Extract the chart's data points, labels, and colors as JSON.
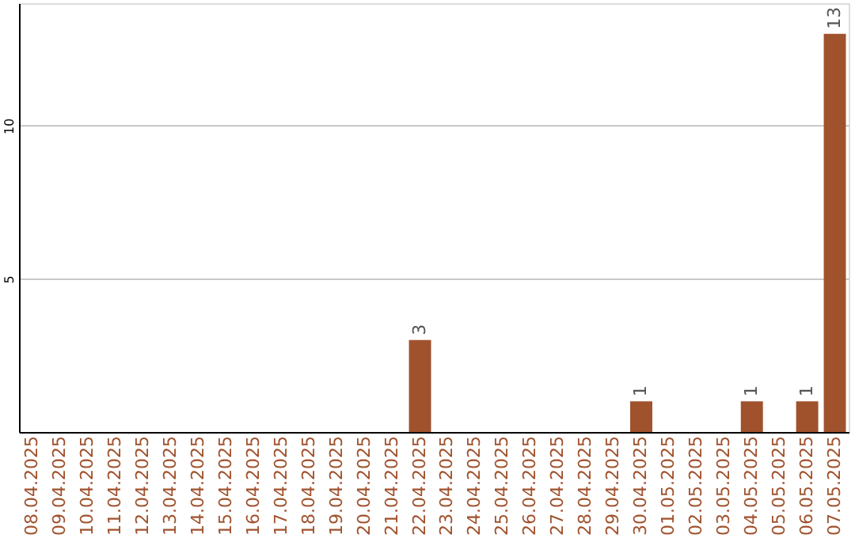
{
  "chart_data": {
    "type": "bar",
    "categories": [
      "08.04.2025",
      "09.04.2025",
      "10.04.2025",
      "11.04.2025",
      "12.04.2025",
      "13.04.2025",
      "14.04.2025",
      "15.04.2025",
      "16.04.2025",
      "17.04.2025",
      "18.04.2025",
      "19.04.2025",
      "20.04.2025",
      "21.04.2025",
      "22.04.2025",
      "23.04.2025",
      "24.04.2025",
      "25.04.2025",
      "26.04.2025",
      "27.04.2025",
      "28.04.2025",
      "29.04.2025",
      "30.04.2025",
      "01.05.2025",
      "02.05.2025",
      "03.05.2025",
      "04.05.2025",
      "05.05.2025",
      "06.05.2025",
      "07.05.2025"
    ],
    "values": [
      0,
      0,
      0,
      0,
      0,
      0,
      0,
      0,
      0,
      0,
      0,
      0,
      0,
      0,
      3,
      0,
      0,
      0,
      0,
      0,
      0,
      0,
      1,
      0,
      0,
      0,
      1,
      0,
      1,
      13
    ],
    "value_labels": [
      null,
      null,
      null,
      null,
      null,
      null,
      null,
      null,
      null,
      null,
      null,
      null,
      null,
      null,
      "3",
      null,
      null,
      null,
      null,
      null,
      null,
      null,
      "1",
      null,
      null,
      null,
      "1",
      null,
      "1",
      "13"
    ],
    "color": "#a0522d",
    "ylim": [
      0,
      14
    ],
    "yticks": [
      5,
      10
    ],
    "grid": "y"
  }
}
